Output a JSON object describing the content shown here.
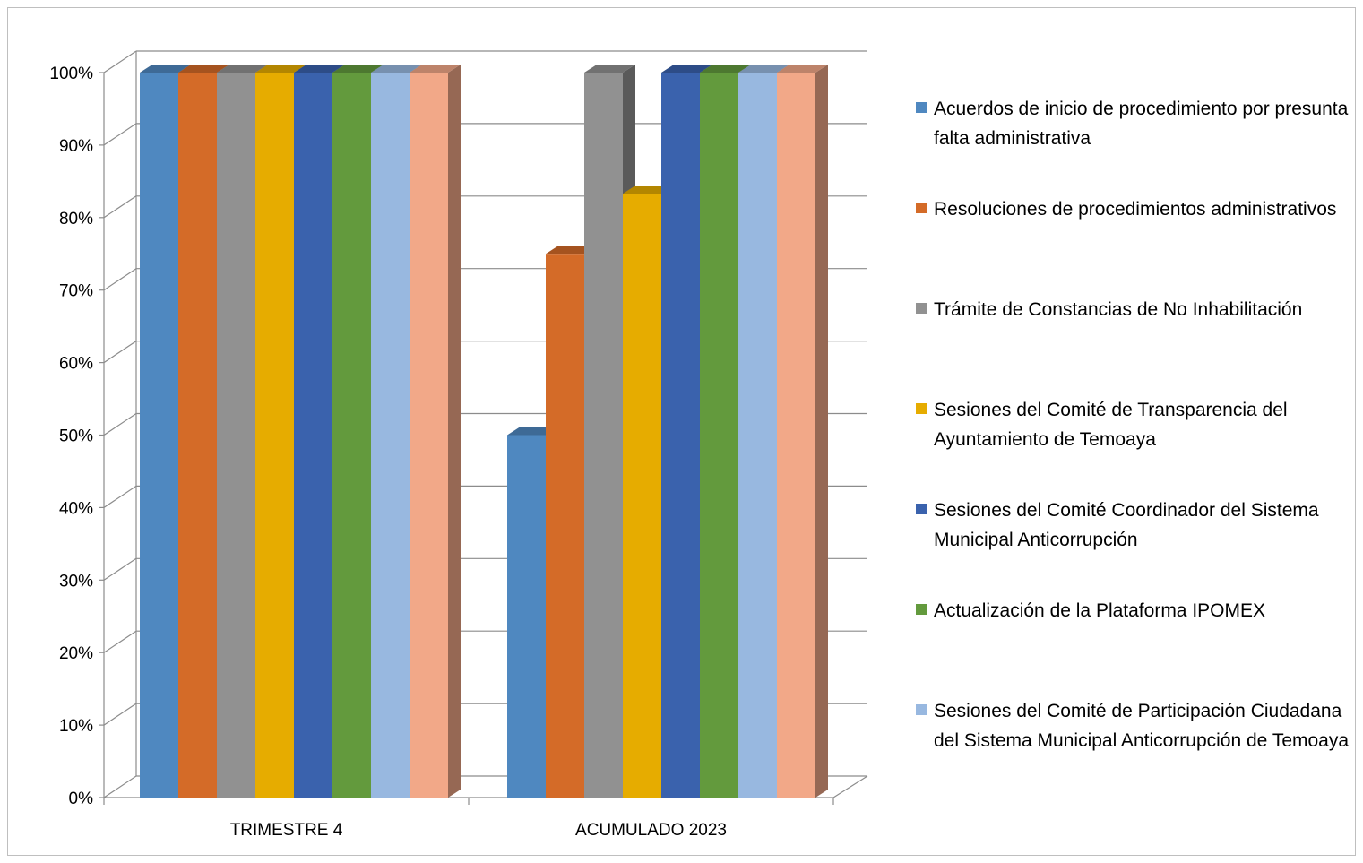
{
  "chart_data": {
    "type": "bar",
    "categories": [
      "TRIMESTRE 4",
      "ACUMULADO 2023"
    ],
    "series": [
      {
        "name": "Acuerdos de inicio de procedimiento por presunta falta administrativa",
        "values": [
          100,
          50
        ],
        "color": "#4f88c0"
      },
      {
        "name": "Resoluciones de procedimientos administrativos",
        "values": [
          100,
          75
        ],
        "color": "#d46b28"
      },
      {
        "name": "Trámite de Constancias de No Inhabilitación",
        "values": [
          100,
          100
        ],
        "color": "#919191"
      },
      {
        "name": "Sesiones del Comité de Transparencia del Ayuntamiento de Temoaya",
        "values": [
          100,
          83.3
        ],
        "color": "#e6ac00"
      },
      {
        "name": "Sesiones del Comité Coordinador del Sistema Municipal Anticorrupción",
        "values": [
          100,
          100
        ],
        "color": "#3a62ad"
      },
      {
        "name": "Actualización de la Plataforma IPOMEX",
        "values": [
          100,
          100
        ],
        "color": "#639a3d"
      },
      {
        "name": "Sesiones del Comité de Participación Ciudadana del Sistema Municipal Anticorrupción de Temoaya",
        "values": [
          100,
          100
        ],
        "color": "#98b8e0"
      },
      {
        "name": "",
        "values": [
          100,
          100
        ],
        "color": "#f2a888"
      }
    ],
    "yticks": [
      "0%",
      "10%",
      "20%",
      "30%",
      "40%",
      "50%",
      "60%",
      "70%",
      "80%",
      "90%",
      "100%"
    ],
    "ylim": [
      0,
      100
    ],
    "grid": true,
    "legend_position": "right",
    "title": "",
    "xlabel": "",
    "ylabel": ""
  }
}
